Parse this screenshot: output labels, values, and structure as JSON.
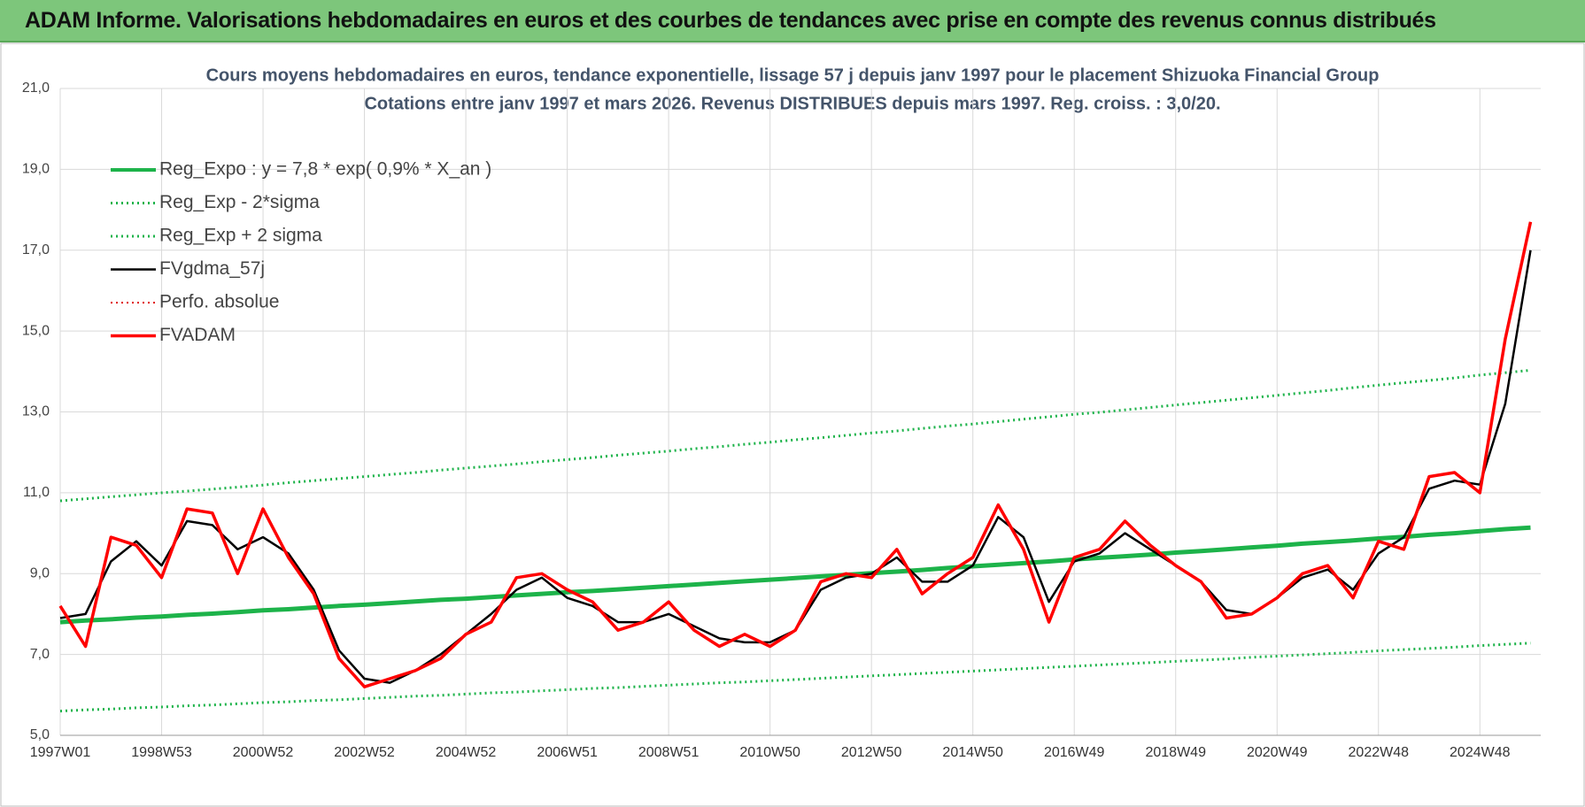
{
  "header": {
    "title": "ADAM Informe. Valorisations hebdomadaires en euros et des courbes de tendances avec prise en compte des revenus connus distribués"
  },
  "chart_data": {
    "type": "line",
    "title": "Cours moyens hebdomadaires en euros, tendance exponentielle, lissage 57 j depuis janv 1997  pour le placement Shizuoka Financial Group",
    "subtitle": "Cotations entre janv 1997 et mars 2026. Revenus DISTRIBUES depuis mars 1997.  Reg. croiss. : 3,0/20.",
    "categories": [
      "1997W01",
      null,
      null,
      null,
      "1998W53",
      null,
      null,
      null,
      "2000W52",
      null,
      null,
      null,
      "2002W52",
      null,
      null,
      null,
      "2004W52",
      null,
      null,
      null,
      "2006W51",
      null,
      null,
      null,
      "2008W51",
      null,
      null,
      null,
      "2010W50",
      null,
      null,
      null,
      "2012W50",
      null,
      null,
      null,
      "2014W50",
      null,
      null,
      null,
      "2016W49",
      null,
      null,
      null,
      "2018W49",
      null,
      null,
      null,
      "2020W49",
      null,
      null,
      null,
      "2022W48",
      null,
      null,
      null,
      "2024W48",
      null,
      null
    ],
    "ylim": [
      5,
      21
    ],
    "yticks": [
      {
        "value": 5,
        "label": "5,0"
      },
      {
        "value": 7,
        "label": "7,0"
      },
      {
        "value": 9,
        "label": "9,0"
      },
      {
        "value": 11,
        "label": "11,0"
      },
      {
        "value": 13,
        "label": "13,0"
      },
      {
        "value": 15,
        "label": "15,0"
      },
      {
        "value": 17,
        "label": "17,0"
      },
      {
        "value": 19,
        "label": "19,0"
      },
      {
        "value": 21,
        "label": "21,0"
      }
    ],
    "grid": true,
    "legend": "top-left",
    "series": [
      {
        "name": "Reg_Expo : y = 7,8 * exp( 0,9% *  X_an )",
        "color": "#1db34a",
        "style": "solid",
        "width": 5,
        "values": [
          7.8,
          7.84,
          7.87,
          7.91,
          7.94,
          7.98,
          8.01,
          8.05,
          8.09,
          8.12,
          8.16,
          8.2,
          8.23,
          8.27,
          8.31,
          8.35,
          8.38,
          8.42,
          8.46,
          8.5,
          8.54,
          8.57,
          8.61,
          8.65,
          8.69,
          8.73,
          8.77,
          8.81,
          8.85,
          8.89,
          8.93,
          8.97,
          9.01,
          9.05,
          9.09,
          9.14,
          9.18,
          9.22,
          9.26,
          9.3,
          9.35,
          9.39,
          9.43,
          9.47,
          9.52,
          9.56,
          9.6,
          9.65,
          9.69,
          9.74,
          9.78,
          9.82,
          9.87,
          9.91,
          9.96,
          10.0,
          10.05,
          10.1,
          10.14
        ]
      },
      {
        "name": "Reg_Exp - 2*sigma",
        "color": "#1db34a",
        "style": "dotted",
        "width": 3,
        "values": [
          5.6,
          5.63,
          5.65,
          5.68,
          5.7,
          5.73,
          5.75,
          5.78,
          5.81,
          5.83,
          5.86,
          5.88,
          5.91,
          5.94,
          5.97,
          5.99,
          6.02,
          6.05,
          6.07,
          6.1,
          6.13,
          6.16,
          6.18,
          6.21,
          6.24,
          6.27,
          6.3,
          6.32,
          6.35,
          6.38,
          6.41,
          6.44,
          6.47,
          6.5,
          6.53,
          6.56,
          6.59,
          6.62,
          6.65,
          6.68,
          6.71,
          6.74,
          6.77,
          6.8,
          6.83,
          6.86,
          6.89,
          6.93,
          6.96,
          6.99,
          7.02,
          7.05,
          7.09,
          7.12,
          7.15,
          7.18,
          7.22,
          7.25,
          7.28
        ]
      },
      {
        "name": "Reg_Exp + 2 sigma",
        "color": "#1db34a",
        "style": "dotted",
        "width": 3,
        "values": [
          10.8,
          10.85,
          10.9,
          10.95,
          11.0,
          11.04,
          11.09,
          11.14,
          11.19,
          11.25,
          11.3,
          11.35,
          11.4,
          11.45,
          11.5,
          11.56,
          11.61,
          11.66,
          11.71,
          11.77,
          11.82,
          11.87,
          11.93,
          11.98,
          12.03,
          12.09,
          12.14,
          12.2,
          12.25,
          12.31,
          12.36,
          12.42,
          12.48,
          12.53,
          12.59,
          12.65,
          12.7,
          12.76,
          12.82,
          12.88,
          12.94,
          12.99,
          13.05,
          13.11,
          13.17,
          13.23,
          13.29,
          13.35,
          13.41,
          13.47,
          13.53,
          13.6,
          13.66,
          13.72,
          13.78,
          13.84,
          13.91,
          13.97,
          14.03
        ]
      },
      {
        "name": "FVgdma_57j",
        "color": "#000000",
        "style": "solid",
        "width": 2.5,
        "values": [
          7.9,
          8.0,
          9.3,
          9.8,
          9.2,
          10.3,
          10.2,
          9.6,
          9.9,
          9.5,
          8.6,
          7.1,
          6.4,
          6.3,
          6.6,
          7.0,
          7.5,
          8.0,
          8.6,
          8.9,
          8.4,
          8.2,
          7.8,
          7.8,
          8.0,
          7.7,
          7.4,
          7.3,
          7.3,
          7.6,
          8.6,
          8.9,
          9.0,
          9.4,
          8.8,
          8.8,
          9.2,
          10.4,
          9.9,
          8.3,
          9.3,
          9.5,
          10.0,
          9.6,
          9.2,
          8.8,
          8.1,
          8.0,
          8.4,
          8.9,
          9.1,
          8.6,
          9.5,
          9.9,
          11.1,
          11.3,
          11.2,
          13.2,
          17.0
        ]
      },
      {
        "name": "Perfo. absolue",
        "color": "#e00000",
        "style": "dotted",
        "width": 2,
        "values": [
          null,
          null,
          null,
          null,
          null,
          null,
          null,
          null,
          null,
          null,
          null,
          null,
          null,
          null,
          null,
          null,
          null,
          null,
          null,
          null,
          null,
          null,
          null,
          null,
          null,
          null,
          null,
          null,
          null,
          null,
          null,
          null,
          null,
          null,
          null,
          null,
          null,
          null,
          null,
          null,
          null,
          null,
          null,
          null,
          null,
          null,
          null,
          null,
          null,
          null,
          null,
          null,
          null,
          null,
          null,
          null,
          null,
          null,
          null
        ]
      },
      {
        "name": "FVADAM",
        "color": "#ff0000",
        "style": "solid",
        "width": 3.5,
        "values": [
          8.2,
          7.2,
          9.9,
          9.7,
          8.9,
          10.6,
          10.5,
          9.0,
          10.6,
          9.4,
          8.5,
          6.9,
          6.2,
          6.4,
          6.6,
          6.9,
          7.5,
          7.8,
          8.9,
          9.0,
          8.6,
          8.3,
          7.6,
          7.8,
          8.3,
          7.6,
          7.2,
          7.5,
          7.2,
          7.6,
          8.8,
          9.0,
          8.9,
          9.6,
          8.5,
          9.0,
          9.4,
          10.7,
          9.6,
          7.8,
          9.4,
          9.6,
          10.3,
          9.7,
          9.2,
          8.8,
          7.9,
          8.0,
          8.4,
          9.0,
          9.2,
          8.4,
          9.8,
          9.6,
          11.4,
          11.5,
          11.0,
          14.8,
          17.7
        ]
      }
    ]
  }
}
